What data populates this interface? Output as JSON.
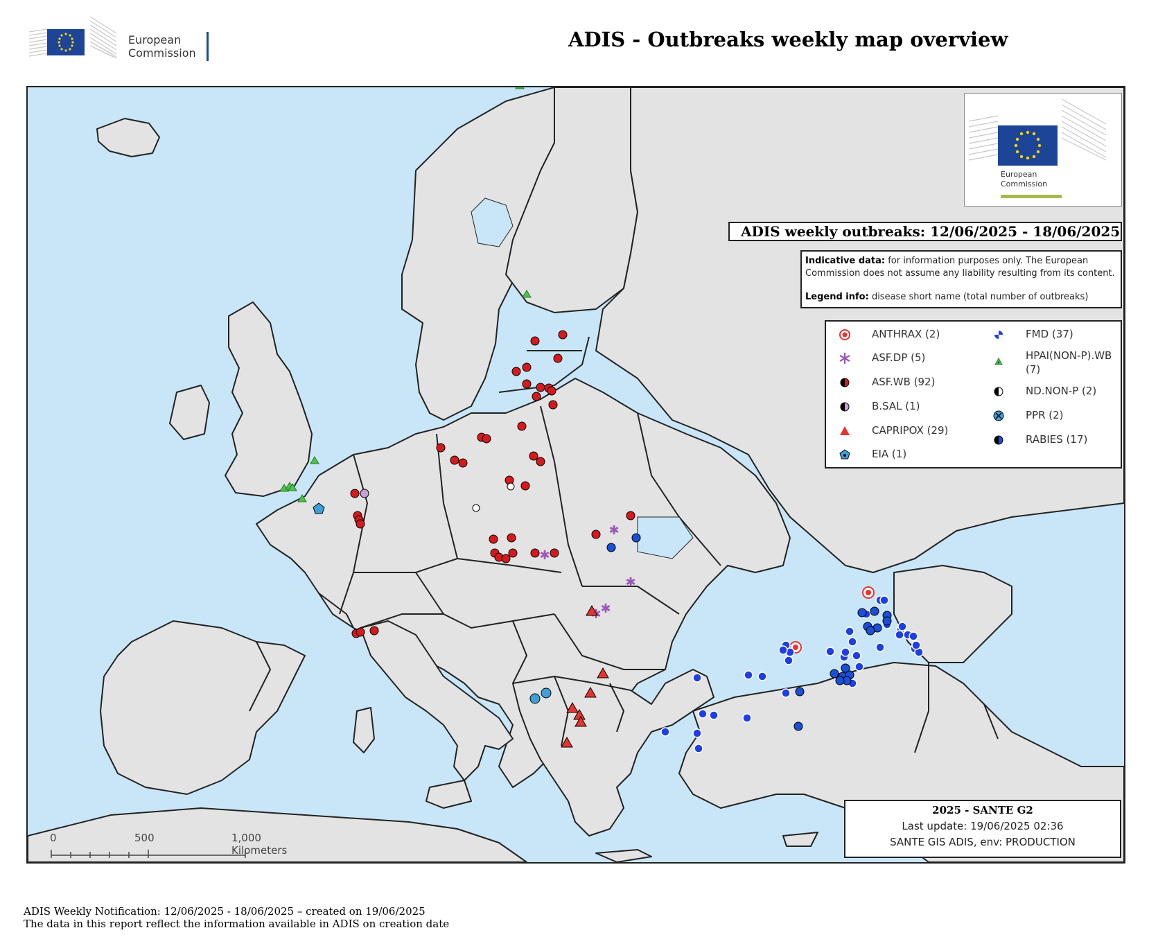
{
  "header": {
    "brand_line1": "European",
    "brand_line2": "Commission",
    "title": "ADIS - Outbreaks weekly map overview"
  },
  "map": {
    "logo_line1": "European",
    "logo_line2": "Commission",
    "period_label": "ADIS  weekly outbreaks: 12/06/2025 - 18/06/2025",
    "indicative_label": "Indicative data:",
    "indicative_text": " for information purposes only. The European Commission does not assume any liability resulting from its content.",
    "legend_info_label": "Legend info:",
    "legend_info_text": " disease short name (total number of outbreaks)",
    "legend": [
      {
        "label": "ANTHRAX (2)",
        "icon": "anthrax-icon",
        "color": "#e8342e"
      },
      {
        "label": "ASF.DP (5)",
        "icon": "asf-dp-icon",
        "color": "#9b59b6"
      },
      {
        "label": "ASF.WB (92)",
        "icon": "asf-wb-icon",
        "color": "#d7191c"
      },
      {
        "label": "B.SAL (1)",
        "icon": "b-sal-icon",
        "color": "#c7a0d8"
      },
      {
        "label": "CAPRIPOX (29)",
        "icon": "capripox-icon",
        "color": "#e8342e"
      },
      {
        "label": "EIA (1)",
        "icon": "eia-icon",
        "color": "#3fa0d8"
      },
      {
        "label": "FMD (37)",
        "icon": "fmd-icon",
        "color": "#1e3fe8"
      },
      {
        "label": "HPAI(NON-P).WB (7)",
        "icon": "hpai-icon",
        "color": "#4bc44b"
      },
      {
        "label": "ND.NON-P (2)",
        "icon": "nd-non-p-icon",
        "color": "#ffffff"
      },
      {
        "label": "PPR (2)",
        "icon": "ppr-icon",
        "color": "#3fa0d8"
      },
      {
        "label": "RABIES (17)",
        "icon": "rabies-icon",
        "color": "#1a4fd8"
      }
    ],
    "credit_title": "2025 - SANTE G2",
    "credit_line1": "Last update: 19/06/2025 02:36",
    "credit_line2": "SANTE GIS ADIS, env: PRODUCTION",
    "scale_labels": [
      "0",
      "500",
      "1,000 Kilometers"
    ]
  },
  "footer": {
    "line1": "ADIS Weekly Notification: 12/06/2025 - 18/06/2025 – created on 19/06/2025",
    "line2": "The data in this report reflect the information available in ADIS on creation date"
  },
  "colors": {
    "sea": "#c8e6f7",
    "land": "#e3e3e3",
    "border": "#222222"
  }
}
